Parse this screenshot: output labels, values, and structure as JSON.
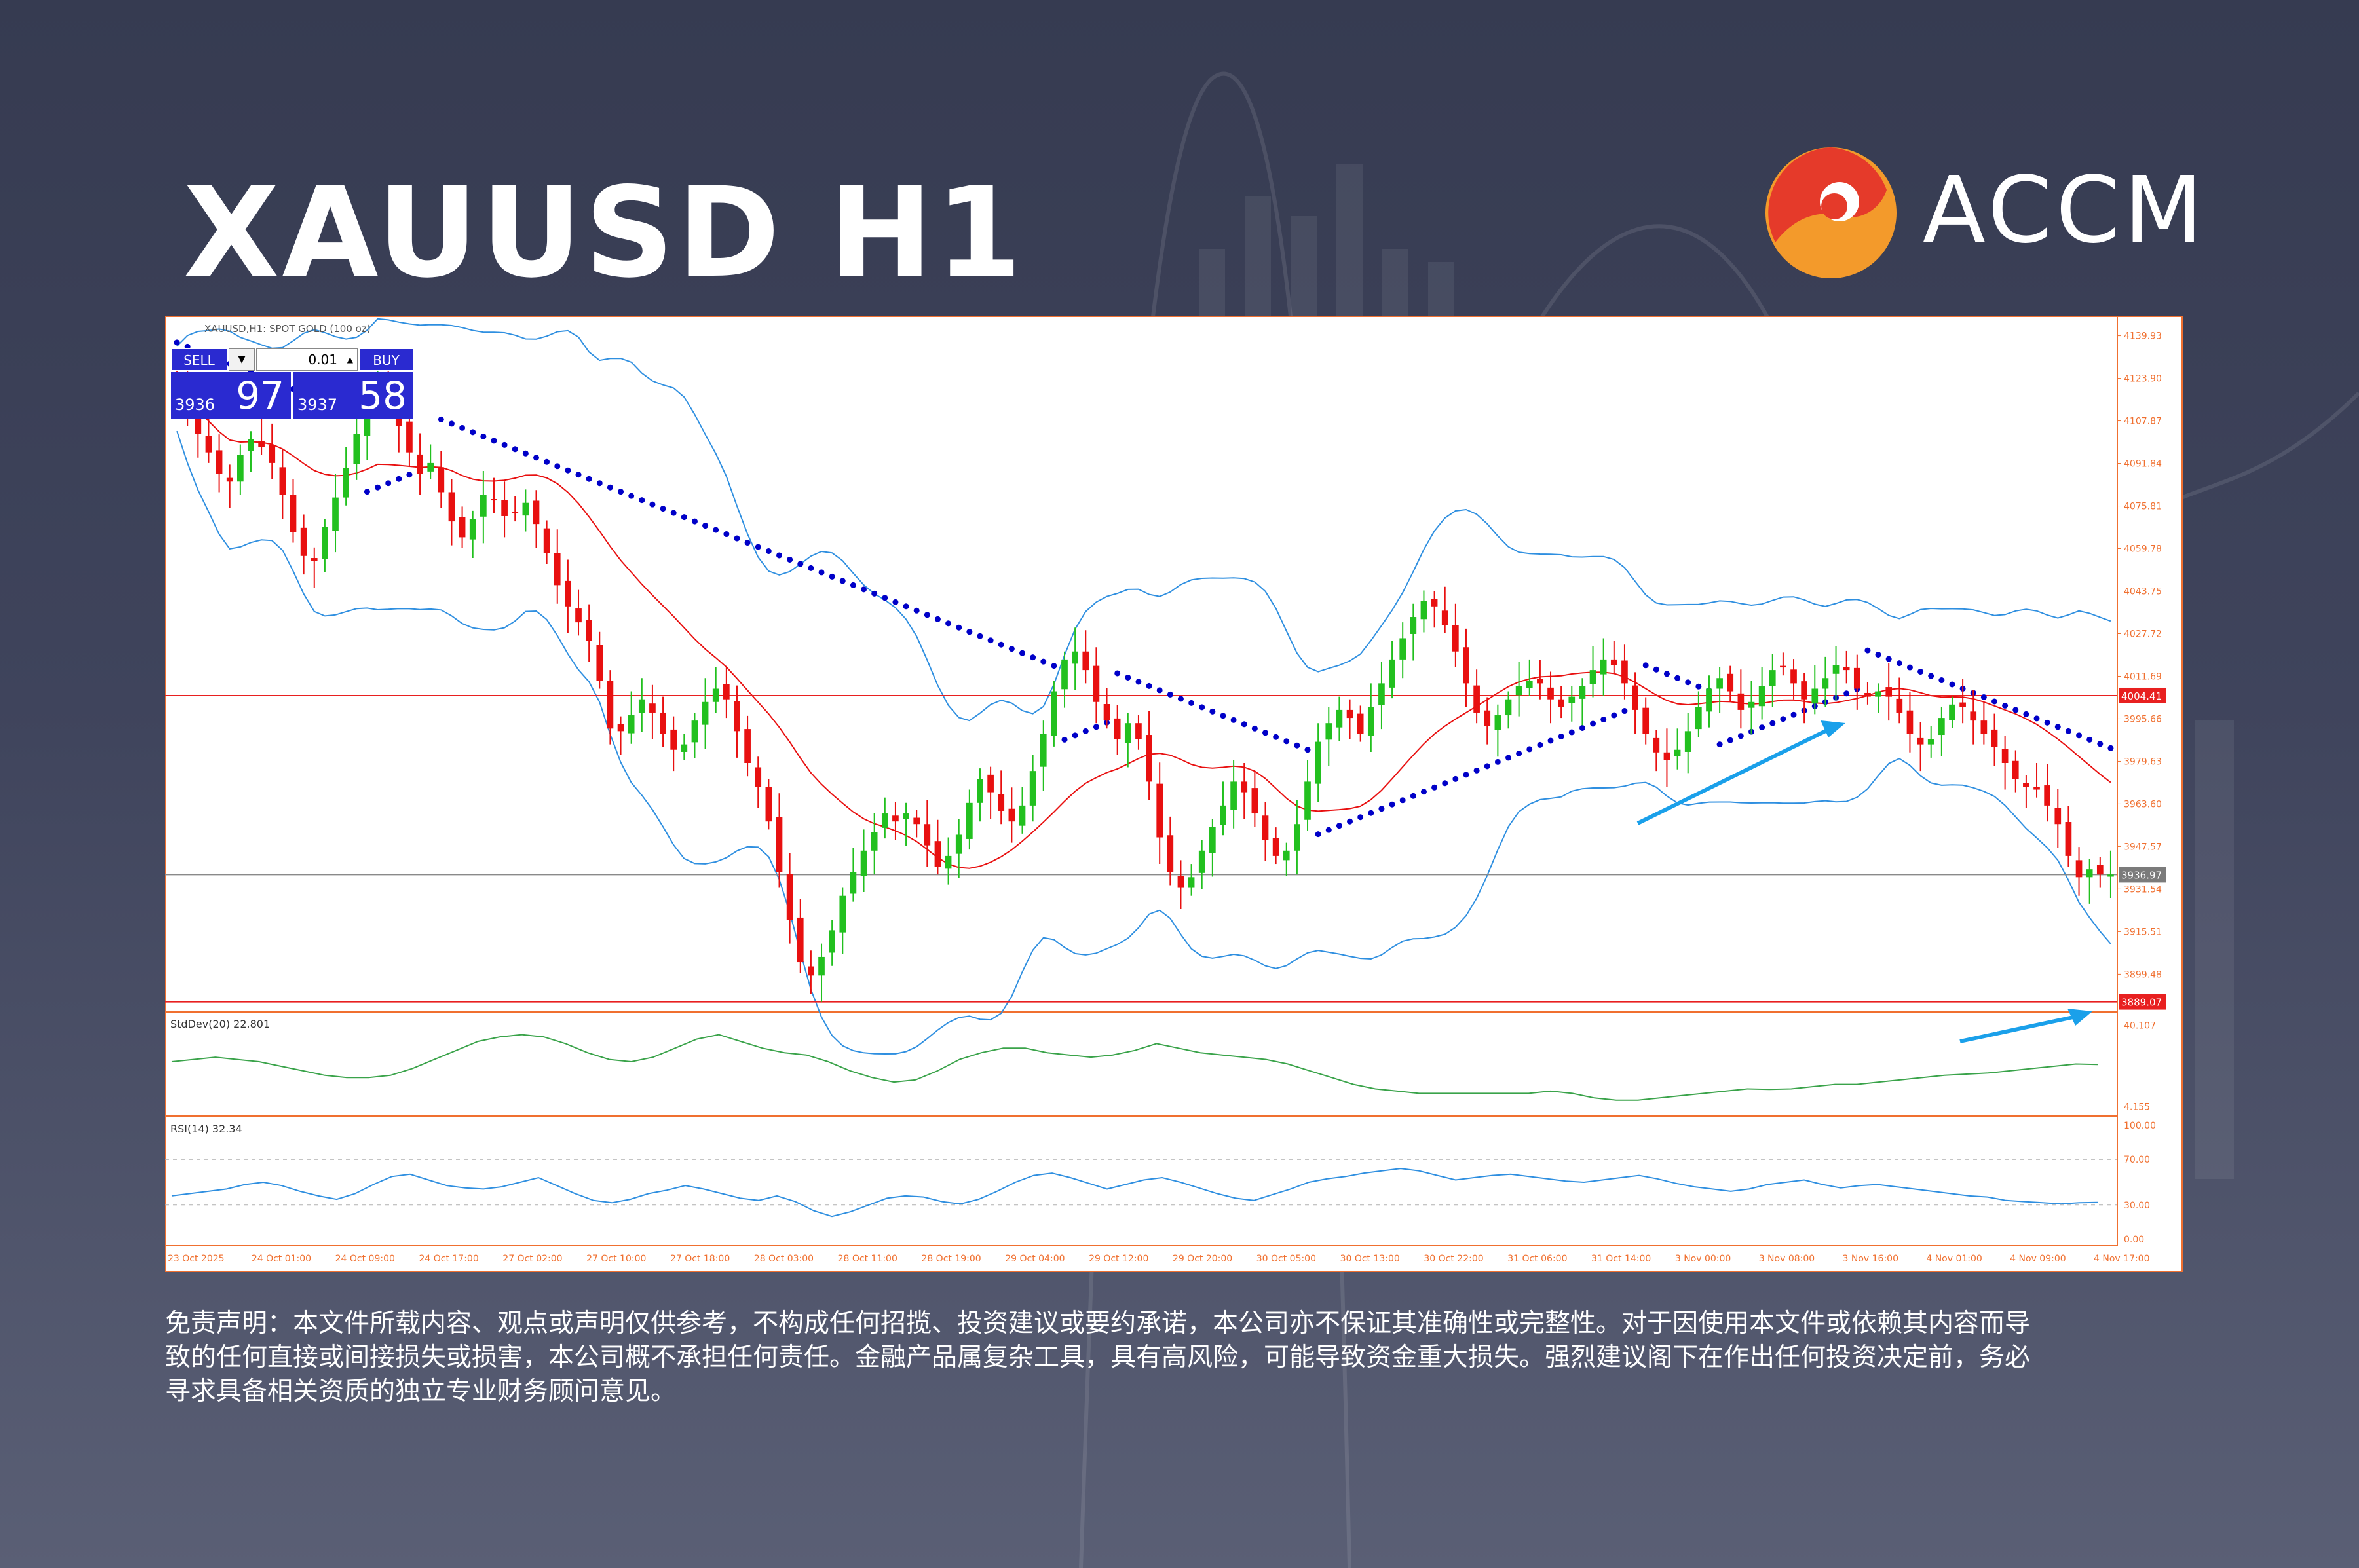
{
  "header": {
    "title": "XAUUSD H1",
    "brand_name": "ACCM",
    "brand_colors": {
      "orange": "#f39a2b",
      "red": "#e53a2a"
    }
  },
  "chart_header": {
    "label": "XAUUSD,H1: SPOT GOLD (100 oz)"
  },
  "trade_panel": {
    "sell_label": "SELL",
    "buy_label": "BUY",
    "lot": "0.01",
    "sell_price_small": "3936",
    "sell_price_big": "97",
    "buy_price_small": "3937",
    "buy_price_big": "58"
  },
  "colors": {
    "bull": "#22c01f",
    "bear": "#e81010",
    "sar": "#0000c8",
    "bollinger": "#2f8fe0",
    "ma": "#e81010",
    "level": "#e82020",
    "stddev": "#3aa34a",
    "rsi": "#2f8fe0",
    "axis": "#f07030",
    "arrow": "#1aa0ea"
  },
  "chart_data": [
    {
      "type": "candlestick",
      "title": "XAUUSD,H1: SPOT GOLD (100 oz)",
      "yticks": [
        "4139.93",
        "4123.90",
        "4107.87",
        "4091.84",
        "4075.81",
        "4059.78",
        "4043.75",
        "4027.72",
        "4011.69",
        "3995.66",
        "3979.63",
        "3963.60",
        "3947.57",
        "3931.54",
        "3915.51",
        "3899.48"
      ],
      "ylim": [
        3886.5,
        4145.5
      ],
      "xticks": [
        "23 Oct 2025",
        "24 Oct 01:00",
        "24 Oct 09:00",
        "24 Oct 17:00",
        "27 Oct 02:00",
        "27 Oct 10:00",
        "27 Oct 18:00",
        "28 Oct 03:00",
        "28 Oct 11:00",
        "28 Oct 19:00",
        "29 Oct 04:00",
        "29 Oct 12:00",
        "29 Oct 20:00",
        "30 Oct 05:00",
        "30 Oct 13:00",
        "30 Oct 22:00",
        "31 Oct 06:00",
        "31 Oct 14:00",
        "3 Nov 00:00",
        "3 Nov 08:00",
        "3 Nov 16:00",
        "4 Nov 01:00",
        "4 Nov 09:00",
        "4 Nov 17:00"
      ],
      "levels": [
        {
          "label": "4004.41",
          "value": 4004.41,
          "style": "resistance"
        },
        {
          "label": "3936.97",
          "value": 3936.97,
          "style": "current"
        },
        {
          "label": "3889.07",
          "value": 3889.07,
          "style": "support"
        }
      ],
      "close": [
        4120,
        4112,
        4103,
        4096,
        4088,
        4085,
        4095,
        4101,
        4098,
        4092,
        4080,
        4066,
        4057,
        4055,
        4068,
        4079,
        4090,
        4103,
        4116,
        4126,
        4118,
        4106,
        4096,
        4088,
        4092,
        4081,
        4070,
        4064,
        4071,
        4080,
        4078,
        4072,
        4073,
        4077,
        4069,
        4058,
        4046,
        4038,
        4032,
        4025,
        4010,
        3992,
        3991,
        3997,
        4003,
        3998,
        3990,
        3984,
        3986,
        3995,
        4002,
        4007,
        4003,
        3991,
        3979,
        3970,
        3957,
        3938,
        3920,
        3904,
        3899,
        3906,
        3916,
        3929,
        3938,
        3946,
        3953,
        3960,
        3957,
        3960,
        3956,
        3948,
        3940,
        3944,
        3952,
        3964,
        3973,
        3968,
        3961,
        3957,
        3963,
        3976,
        3990,
        4006,
        4018,
        4021,
        4014,
        4002,
        3995,
        3988,
        3994,
        3988,
        3972,
        3951,
        3938,
        3932,
        3936,
        3946,
        3955,
        3963,
        3972,
        3968,
        3960,
        3950,
        3944,
        3946,
        3956,
        3972,
        3987,
        3994,
        3999,
        3996,
        3990,
        4000,
        4009,
        4018,
        4026,
        4034,
        4040,
        4038,
        4031,
        4021,
        4009,
        3998,
        3993,
        3997,
        4003,
        4008,
        4010,
        4009,
        4003,
        4000,
        4004,
        4008,
        4014,
        4018,
        4016,
        4009,
        3999,
        3990,
        3983,
        3980,
        3984,
        3991,
        4000,
        4007,
        4011,
        4006,
        3999,
        4002,
        4008,
        4014,
        4015,
        4009,
        4003,
        4007,
        4011,
        4016,
        4014,
        4007,
        4004,
        4006,
        4004,
        3998,
        3990,
        3986,
        3988,
        3996,
        4001,
        4000,
        3995,
        3990,
        3985,
        3979,
        3973,
        3970,
        3969,
        3963,
        3956,
        3944,
        3936,
        3939,
        3937,
        3937
      ]
    },
    {
      "type": "line",
      "name": "StdDev(20) 22.801",
      "yticks": [
        "40.107",
        "4.155"
      ],
      "ylim": [
        2,
        44
      ],
      "values": [
        24,
        25,
        26,
        25,
        24,
        22,
        20,
        18,
        17,
        17,
        18,
        21,
        25,
        29,
        33,
        35,
        36,
        35,
        32,
        28,
        25,
        24,
        26,
        30,
        34,
        36,
        33,
        30,
        28,
        27,
        24,
        20,
        17,
        15,
        16,
        20,
        25,
        28,
        30,
        30,
        28,
        27,
        26,
        27,
        29,
        32,
        30,
        28,
        27,
        26,
        25,
        23,
        20,
        17,
        14,
        12,
        11,
        10,
        10,
        10,
        10,
        10,
        10,
        11,
        10,
        8,
        7,
        7,
        8,
        9,
        10,
        11,
        12,
        11.8,
        12,
        13,
        14,
        14,
        15,
        16,
        17,
        18,
        18.5,
        19,
        20,
        21,
        22,
        23,
        22.8
      ]
    },
    {
      "type": "line",
      "name": "RSI(14) 32.34",
      "yticks": [
        "100.00",
        "70.00",
        "30.00",
        "0.00"
      ],
      "ylim": [
        0,
        100
      ],
      "values": [
        38,
        40,
        42,
        44,
        48,
        50,
        47,
        42,
        38,
        35,
        40,
        48,
        55,
        57,
        52,
        47,
        45,
        44,
        46,
        50,
        54,
        47,
        40,
        34,
        32,
        35,
        40,
        43,
        47,
        44,
        40,
        36,
        34,
        38,
        33,
        25,
        20,
        24,
        30,
        36,
        38,
        37,
        33,
        31,
        35,
        42,
        50,
        56,
        58,
        54,
        49,
        44,
        48,
        52,
        54,
        50,
        45,
        40,
        36,
        34,
        39,
        44,
        50,
        53,
        55,
        58,
        60,
        62,
        60,
        56,
        52,
        54,
        56,
        57,
        55,
        53,
        51,
        50,
        52,
        54,
        56,
        53,
        49,
        46,
        44,
        42,
        44,
        48,
        50,
        52,
        48,
        45,
        47,
        48,
        46,
        44,
        42,
        40,
        38,
        37,
        34,
        33,
        32,
        31,
        32,
        32.34
      ]
    }
  ],
  "disclaimer": {
    "line1": "免责声明：本文件所载内容、观点或声明仅供参考，不构成任何招揽、投资建议或要约承诺，本公司亦不保证其准确性或完整性。对于因使用本文件或依赖其内容而导",
    "line2": "致的任何直接或间接损失或损害，本公司概不承担任何责任。金融产品属复杂工具，具有高风险，可能导致资金重大损失。强烈建议阁下在作出任何投资决定前，务必",
    "line3": "寻求具备相关资质的独立专业财务顾问意见。"
  }
}
